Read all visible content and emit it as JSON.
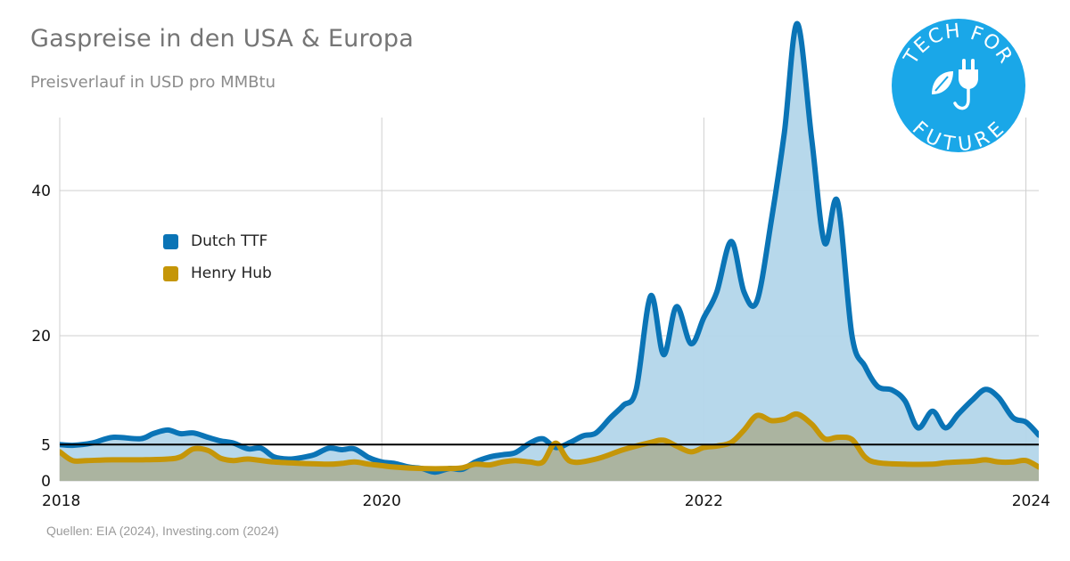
{
  "title": "Gaspreise in den USA & Europa",
  "subtitle": "Preisverlauf in USD pro MMBtu",
  "source": "Quellen: EIA (2024), Investing.com (2024)",
  "logo": {
    "text_top": "TECH FOR",
    "text_bottom": "FUTURE",
    "icon": "plug-leaf-icon",
    "color": "#1aa7e8"
  },
  "chart_data": {
    "type": "area",
    "title": "Gaspreise in den USA & Europa",
    "subtitle": "Preisverlauf in USD pro MMBtu",
    "xlabel": "",
    "ylabel": "",
    "x_ticks": [
      "2018",
      "2020",
      "2022",
      "2024"
    ],
    "y_ticks": [
      0,
      5,
      20,
      40
    ],
    "xlim": [
      2018.0,
      2024.08
    ],
    "ylim": [
      0,
      50
    ],
    "reference_line": {
      "y": 5,
      "color": "#000000"
    },
    "grid": true,
    "legend_position": "left-middle",
    "series": [
      {
        "name": "Dutch TTF",
        "color": "#0a74b6",
        "fill": "#b3d6ea",
        "points": [
          [
            2018.0,
            5.0
          ],
          [
            2018.08,
            4.9
          ],
          [
            2018.2,
            5.2
          ],
          [
            2018.33,
            6.0
          ],
          [
            2018.5,
            5.8
          ],
          [
            2018.58,
            6.5
          ],
          [
            2018.67,
            7.0
          ],
          [
            2018.75,
            6.5
          ],
          [
            2018.83,
            6.6
          ],
          [
            2018.92,
            6.0
          ],
          [
            2019.0,
            5.5
          ],
          [
            2019.08,
            5.2
          ],
          [
            2019.17,
            4.4
          ],
          [
            2019.25,
            4.5
          ],
          [
            2019.33,
            3.3
          ],
          [
            2019.42,
            3.0
          ],
          [
            2019.5,
            3.2
          ],
          [
            2019.58,
            3.6
          ],
          [
            2019.67,
            4.5
          ],
          [
            2019.75,
            4.3
          ],
          [
            2019.83,
            4.4
          ],
          [
            2019.92,
            3.2
          ],
          [
            2020.0,
            2.6
          ],
          [
            2020.08,
            2.4
          ],
          [
            2020.17,
            1.9
          ],
          [
            2020.25,
            1.7
          ],
          [
            2020.33,
            1.2
          ],
          [
            2020.42,
            1.7
          ],
          [
            2020.5,
            1.6
          ],
          [
            2020.58,
            2.6
          ],
          [
            2020.67,
            3.3
          ],
          [
            2020.75,
            3.6
          ],
          [
            2020.83,
            3.9
          ],
          [
            2020.92,
            5.2
          ],
          [
            2021.0,
            5.8
          ],
          [
            2021.08,
            4.6
          ],
          [
            2021.17,
            5.3
          ],
          [
            2021.25,
            6.2
          ],
          [
            2021.33,
            6.6
          ],
          [
            2021.42,
            8.7
          ],
          [
            2021.5,
            10.4
          ],
          [
            2021.58,
            12.6
          ],
          [
            2021.67,
            25.5
          ],
          [
            2021.75,
            17.4
          ],
          [
            2021.83,
            24.0
          ],
          [
            2021.92,
            18.9
          ],
          [
            2022.0,
            22.5
          ],
          [
            2022.08,
            26.0
          ],
          [
            2022.17,
            33.0
          ],
          [
            2022.25,
            26.0
          ],
          [
            2022.33,
            24.8
          ],
          [
            2022.42,
            36.0
          ],
          [
            2022.5,
            48.0
          ],
          [
            2022.58,
            63.0
          ],
          [
            2022.67,
            47.0
          ],
          [
            2022.75,
            32.8
          ],
          [
            2022.83,
            38.5
          ],
          [
            2022.92,
            20.0
          ],
          [
            2023.0,
            15.8
          ],
          [
            2023.08,
            13.0
          ],
          [
            2023.17,
            12.5
          ],
          [
            2023.25,
            11.0
          ],
          [
            2023.33,
            7.3
          ],
          [
            2023.42,
            9.6
          ],
          [
            2023.5,
            7.3
          ],
          [
            2023.58,
            9.2
          ],
          [
            2023.67,
            11.2
          ],
          [
            2023.75,
            12.6
          ],
          [
            2023.83,
            11.5
          ],
          [
            2023.92,
            8.7
          ],
          [
            2024.0,
            8.1
          ],
          [
            2024.08,
            6.3
          ]
        ]
      },
      {
        "name": "Henry Hub",
        "color": "#c59608",
        "fill": "#a9ae93",
        "points": [
          [
            2018.0,
            4.0
          ],
          [
            2018.08,
            2.8
          ],
          [
            2018.17,
            2.8
          ],
          [
            2018.33,
            2.9
          ],
          [
            2018.5,
            2.9
          ],
          [
            2018.67,
            3.0
          ],
          [
            2018.75,
            3.3
          ],
          [
            2018.83,
            4.4
          ],
          [
            2018.92,
            4.2
          ],
          [
            2019.0,
            3.1
          ],
          [
            2019.08,
            2.8
          ],
          [
            2019.17,
            3.0
          ],
          [
            2019.33,
            2.6
          ],
          [
            2019.5,
            2.4
          ],
          [
            2019.67,
            2.3
          ],
          [
            2019.75,
            2.4
          ],
          [
            2019.83,
            2.6
          ],
          [
            2019.92,
            2.3
          ],
          [
            2020.0,
            2.1
          ],
          [
            2020.08,
            1.9
          ],
          [
            2020.25,
            1.7
          ],
          [
            2020.42,
            1.7
          ],
          [
            2020.5,
            1.8
          ],
          [
            2020.58,
            2.3
          ],
          [
            2020.67,
            2.2
          ],
          [
            2020.75,
            2.6
          ],
          [
            2020.83,
            2.8
          ],
          [
            2020.92,
            2.6
          ],
          [
            2021.0,
            2.6
          ],
          [
            2021.08,
            5.2
          ],
          [
            2021.17,
            2.7
          ],
          [
            2021.33,
            3.0
          ],
          [
            2021.5,
            4.3
          ],
          [
            2021.67,
            5.3
          ],
          [
            2021.75,
            5.6
          ],
          [
            2021.83,
            4.8
          ],
          [
            2021.92,
            4.0
          ],
          [
            2022.0,
            4.6
          ],
          [
            2022.08,
            4.8
          ],
          [
            2022.17,
            5.3
          ],
          [
            2022.25,
            7.0
          ],
          [
            2022.33,
            9.0
          ],
          [
            2022.42,
            8.3
          ],
          [
            2022.5,
            8.5
          ],
          [
            2022.58,
            9.2
          ],
          [
            2022.67,
            7.8
          ],
          [
            2022.75,
            5.8
          ],
          [
            2022.83,
            6.0
          ],
          [
            2022.92,
            5.7
          ],
          [
            2023.0,
            3.3
          ],
          [
            2023.08,
            2.5
          ],
          [
            2023.25,
            2.3
          ],
          [
            2023.42,
            2.3
          ],
          [
            2023.5,
            2.5
          ],
          [
            2023.67,
            2.7
          ],
          [
            2023.75,
            2.9
          ],
          [
            2023.83,
            2.6
          ],
          [
            2023.92,
            2.6
          ],
          [
            2024.0,
            2.8
          ],
          [
            2024.08,
            1.9
          ]
        ]
      }
    ]
  }
}
